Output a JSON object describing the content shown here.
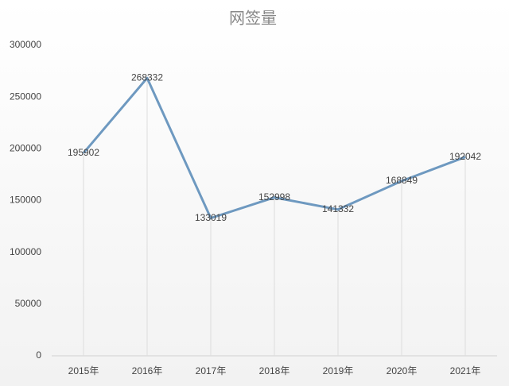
{
  "chart_data": {
    "type": "line",
    "title": "网签量",
    "categories": [
      "2015年",
      "2016年",
      "2017年",
      "2018年",
      "2019年",
      "2020年",
      "2021年"
    ],
    "values": [
      195902,
      268332,
      133019,
      152998,
      141332,
      168849,
      192042
    ],
    "color": "#6e99c0",
    "ylim": [
      0,
      300000
    ],
    "yticks": [
      0,
      50000,
      100000,
      150000,
      200000,
      250000,
      300000
    ],
    "drop_lines": true
  }
}
